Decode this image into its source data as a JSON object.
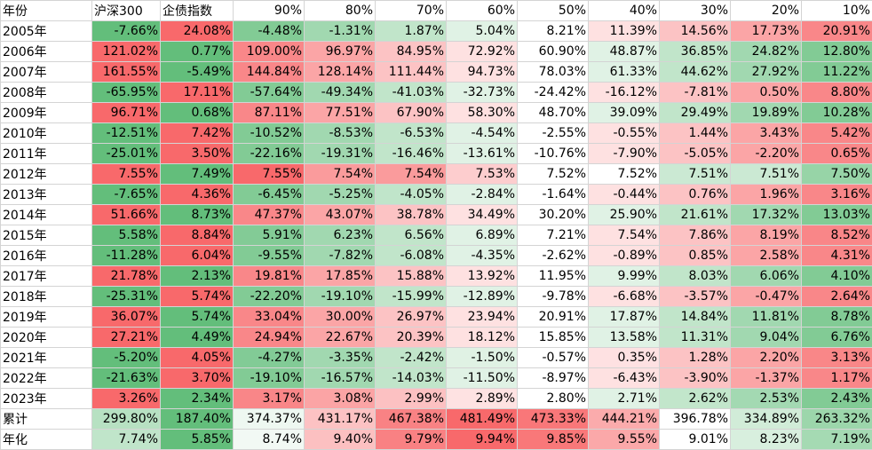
{
  "table": {
    "header": [
      "年份",
      "沪深300",
      "企债指数",
      "90%",
      "80%",
      "70%",
      "60%",
      "50%",
      "40%",
      "30%",
      "20%",
      "10%"
    ],
    "rows": [
      [
        "2005年",
        "-7.66%",
        "24.08%",
        "-4.48%",
        "-1.31%",
        "1.87%",
        "5.04%",
        "8.21%",
        "11.39%",
        "14.56%",
        "17.73%",
        "20.91%"
      ],
      [
        "2006年",
        "121.02%",
        "0.77%",
        "109.00%",
        "96.97%",
        "84.95%",
        "72.92%",
        "60.90%",
        "48.87%",
        "36.85%",
        "24.82%",
        "12.80%"
      ],
      [
        "2007年",
        "161.55%",
        "-5.49%",
        "144.84%",
        "128.14%",
        "111.44%",
        "94.73%",
        "78.03%",
        "61.33%",
        "44.62%",
        "27.92%",
        "11.22%"
      ],
      [
        "2008年",
        "-65.95%",
        "17.11%",
        "-57.64%",
        "-49.34%",
        "-41.03%",
        "-32.73%",
        "-24.42%",
        "-16.12%",
        "-7.81%",
        "0.50%",
        "8.80%"
      ],
      [
        "2009年",
        "96.71%",
        "0.68%",
        "87.11%",
        "77.51%",
        "67.90%",
        "58.30%",
        "48.70%",
        "39.09%",
        "29.49%",
        "19.89%",
        "10.28%"
      ],
      [
        "2010年",
        "-12.51%",
        "7.42%",
        "-10.52%",
        "-8.53%",
        "-6.53%",
        "-4.54%",
        "-2.55%",
        "-0.55%",
        "1.44%",
        "3.43%",
        "5.42%"
      ],
      [
        "2011年",
        "-25.01%",
        "3.50%",
        "-22.16%",
        "-19.31%",
        "-16.46%",
        "-13.61%",
        "-10.76%",
        "-7.90%",
        "-5.05%",
        "-2.20%",
        "0.65%"
      ],
      [
        "2012年",
        "7.55%",
        "7.49%",
        "7.55%",
        "7.54%",
        "7.54%",
        "7.53%",
        "7.52%",
        "7.52%",
        "7.51%",
        "7.51%",
        "7.50%"
      ],
      [
        "2013年",
        "-7.65%",
        "4.36%",
        "-6.45%",
        "-5.25%",
        "-4.05%",
        "-2.84%",
        "-1.64%",
        "-0.44%",
        "0.76%",
        "1.96%",
        "3.16%"
      ],
      [
        "2014年",
        "51.66%",
        "8.73%",
        "47.37%",
        "43.07%",
        "38.78%",
        "34.49%",
        "30.20%",
        "25.90%",
        "21.61%",
        "17.32%",
        "13.03%"
      ],
      [
        "2015年",
        "5.58%",
        "8.84%",
        "5.91%",
        "6.23%",
        "6.56%",
        "6.89%",
        "7.21%",
        "7.54%",
        "7.86%",
        "8.19%",
        "8.52%"
      ],
      [
        "2016年",
        "-11.28%",
        "6.04%",
        "-9.55%",
        "-7.82%",
        "-6.08%",
        "-4.35%",
        "-2.62%",
        "-0.89%",
        "0.85%",
        "2.58%",
        "4.31%"
      ],
      [
        "2017年",
        "21.78%",
        "2.13%",
        "19.81%",
        "17.85%",
        "15.88%",
        "13.92%",
        "11.95%",
        "9.99%",
        "8.03%",
        "6.06%",
        "4.10%"
      ],
      [
        "2018年",
        "-25.31%",
        "5.74%",
        "-22.20%",
        "-19.10%",
        "-15.99%",
        "-12.89%",
        "-9.78%",
        "-6.68%",
        "-3.57%",
        "-0.47%",
        "2.64%"
      ],
      [
        "2019年",
        "36.07%",
        "5.74%",
        "33.04%",
        "30.00%",
        "26.97%",
        "23.94%",
        "20.91%",
        "17.87%",
        "14.84%",
        "11.81%",
        "8.78%"
      ],
      [
        "2020年",
        "27.21%",
        "4.49%",
        "24.94%",
        "22.67%",
        "20.39%",
        "18.12%",
        "15.85%",
        "13.58%",
        "11.31%",
        "9.04%",
        "6.76%"
      ],
      [
        "2021年",
        "-5.20%",
        "4.05%",
        "-4.27%",
        "-3.35%",
        "-2.42%",
        "-1.50%",
        "-0.57%",
        "0.35%",
        "1.28%",
        "2.20%",
        "3.13%"
      ],
      [
        "2022年",
        "-21.63%",
        "3.70%",
        "-19.10%",
        "-16.57%",
        "-14.03%",
        "-11.50%",
        "-8.97%",
        "-6.43%",
        "-3.90%",
        "-1.37%",
        "1.17%"
      ],
      [
        "2023年",
        "3.26%",
        "2.34%",
        "3.17%",
        "3.08%",
        "2.99%",
        "2.89%",
        "2.80%",
        "2.71%",
        "2.62%",
        "2.53%",
        "2.43%"
      ],
      [
        "累计",
        "299.80%",
        "187.40%",
        "374.37%",
        "431.17%",
        "467.38%",
        "481.49%",
        "473.33%",
        "444.21%",
        "396.78%",
        "334.89%",
        "263.32%"
      ],
      [
        "年化",
        "7.74%",
        "5.85%",
        "8.74%",
        "9.40%",
        "9.79%",
        "9.94%",
        "9.85%",
        "9.55%",
        "9.01%",
        "8.23%",
        "7.19%"
      ]
    ]
  }
}
